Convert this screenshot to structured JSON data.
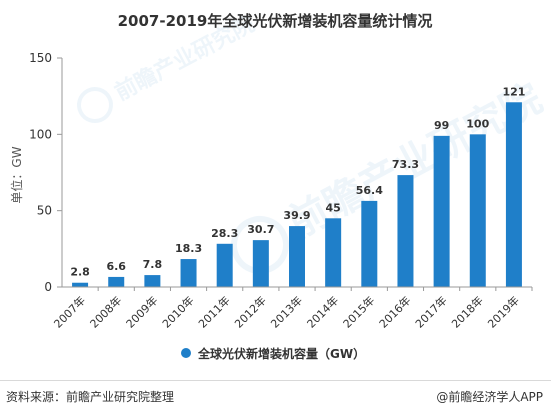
{
  "chart_data": {
    "type": "bar",
    "title": "2007-2019年全球光伏新增装机容量统计情况",
    "ylabel": "单位：GW",
    "xlabel": "",
    "categories": [
      "2007年",
      "2008年",
      "2009年",
      "2010年",
      "2011年",
      "2012年",
      "2013年",
      "2014年",
      "2015年",
      "2016年",
      "2017年",
      "2018年",
      "2019年"
    ],
    "series": [
      {
        "name": "全球光伏新增装机容量（GW）",
        "values": [
          2.8,
          6.6,
          7.8,
          18.3,
          28.3,
          30.7,
          39.9,
          45,
          56.4,
          73.3,
          99,
          100,
          121
        ],
        "labels": [
          "2.8",
          "6.6",
          "7.8",
          "18.3",
          "28.3",
          "30.7",
          "39.9",
          "45",
          "56.4",
          "73.3",
          "99",
          "100",
          "121"
        ],
        "color": "#1f7fc9"
      }
    ],
    "ylim": [
      0,
      150
    ],
    "yticks": [
      0,
      50,
      100,
      150
    ],
    "grid": false,
    "legend_position": "bottom-center"
  },
  "watermark": "前瞻产业研究院",
  "footer": {
    "source": "资料来源：前瞻产业研究院整理",
    "brand": "@前瞻经济学人APP"
  }
}
